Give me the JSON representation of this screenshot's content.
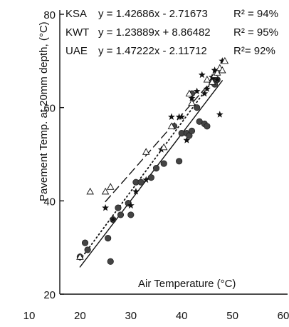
{
  "chart_data": {
    "type": "scatter",
    "title": "",
    "xlabel": "Air Temperature  (°C)",
    "ylabel": "Pavement Temp. at 20mm depth, (°C)",
    "xlim": [
      10,
      60
    ],
    "ylim": [
      20,
      80
    ],
    "x_ticks": [
      10,
      20,
      30,
      40,
      50,
      60
    ],
    "y_ticks": [
      20,
      40,
      60,
      80
    ],
    "x_tick_labels": [
      "10",
      "20",
      "30",
      "40",
      "50",
      "60"
    ],
    "y_tick_labels": [
      "20",
      "40",
      "60",
      "80"
    ],
    "grid": false,
    "legend": "top-left",
    "series": [
      {
        "name": "KSA",
        "marker": "circle",
        "color": "#444444",
        "equation": "y = 1.42686x - 2.71673",
        "r2": "R² = 94%",
        "line_style": "solid",
        "slope": 1.42686,
        "intercept": -2.71673,
        "line_x": [
          20,
          48
        ],
        "x": [
          20,
          21,
          21.5,
          25.5,
          26,
          26.5,
          27.5,
          28,
          29.5,
          30,
          31,
          32,
          34,
          35,
          36.5,
          38.5,
          39.5,
          40,
          41,
          41.5,
          42,
          42,
          43,
          43.5,
          44.5,
          45,
          46,
          46.5,
          47
        ],
        "y": [
          28,
          31,
          29.5,
          32,
          27,
          36,
          38.5,
          37,
          39.5,
          37,
          44,
          44,
          45,
          47,
          48,
          56,
          48.5,
          54.5,
          54.5,
          54,
          55,
          63,
          60,
          57,
          56.5,
          56,
          65.5,
          65,
          66
        ]
      },
      {
        "name": "KWT",
        "marker": "star",
        "color": "#111111",
        "equation": "y = 1.23889x + 8.86482",
        "r2": "R² = 95%",
        "line_style": "dashed",
        "slope": 1.23889,
        "intercept": 8.86482,
        "line_x": [
          25,
          48
        ],
        "x": [
          25,
          26.5,
          30,
          31,
          33,
          36,
          38,
          39.5,
          40,
          41,
          42,
          43,
          44,
          44.5,
          45,
          46,
          46.5,
          47,
          47.5,
          48
        ],
        "y": [
          38.5,
          36,
          39,
          42,
          44.5,
          51,
          58,
          58,
          58,
          53,
          62,
          63.5,
          67,
          63,
          64,
          66.5,
          68,
          66,
          58.5,
          70
        ]
      },
      {
        "name": "UAE",
        "marker": "triangle",
        "color": "#111111",
        "equation": "y = 1.47222x - 2.11712",
        "r2": "R²= 92%",
        "line_style": "dotted",
        "slope": 1.47222,
        "intercept": -2.11712,
        "line_x": [
          20,
          47
        ],
        "x": [
          20,
          22,
          25,
          26,
          33,
          36.5,
          38,
          41.5,
          42,
          45,
          46,
          46.5,
          47,
          47.5,
          48,
          48.5
        ],
        "y": [
          28,
          42,
          42,
          43,
          50.5,
          51.5,
          56,
          63,
          61,
          66,
          65.5,
          67,
          67.5,
          68.5,
          68,
          70
        ]
      }
    ]
  }
}
